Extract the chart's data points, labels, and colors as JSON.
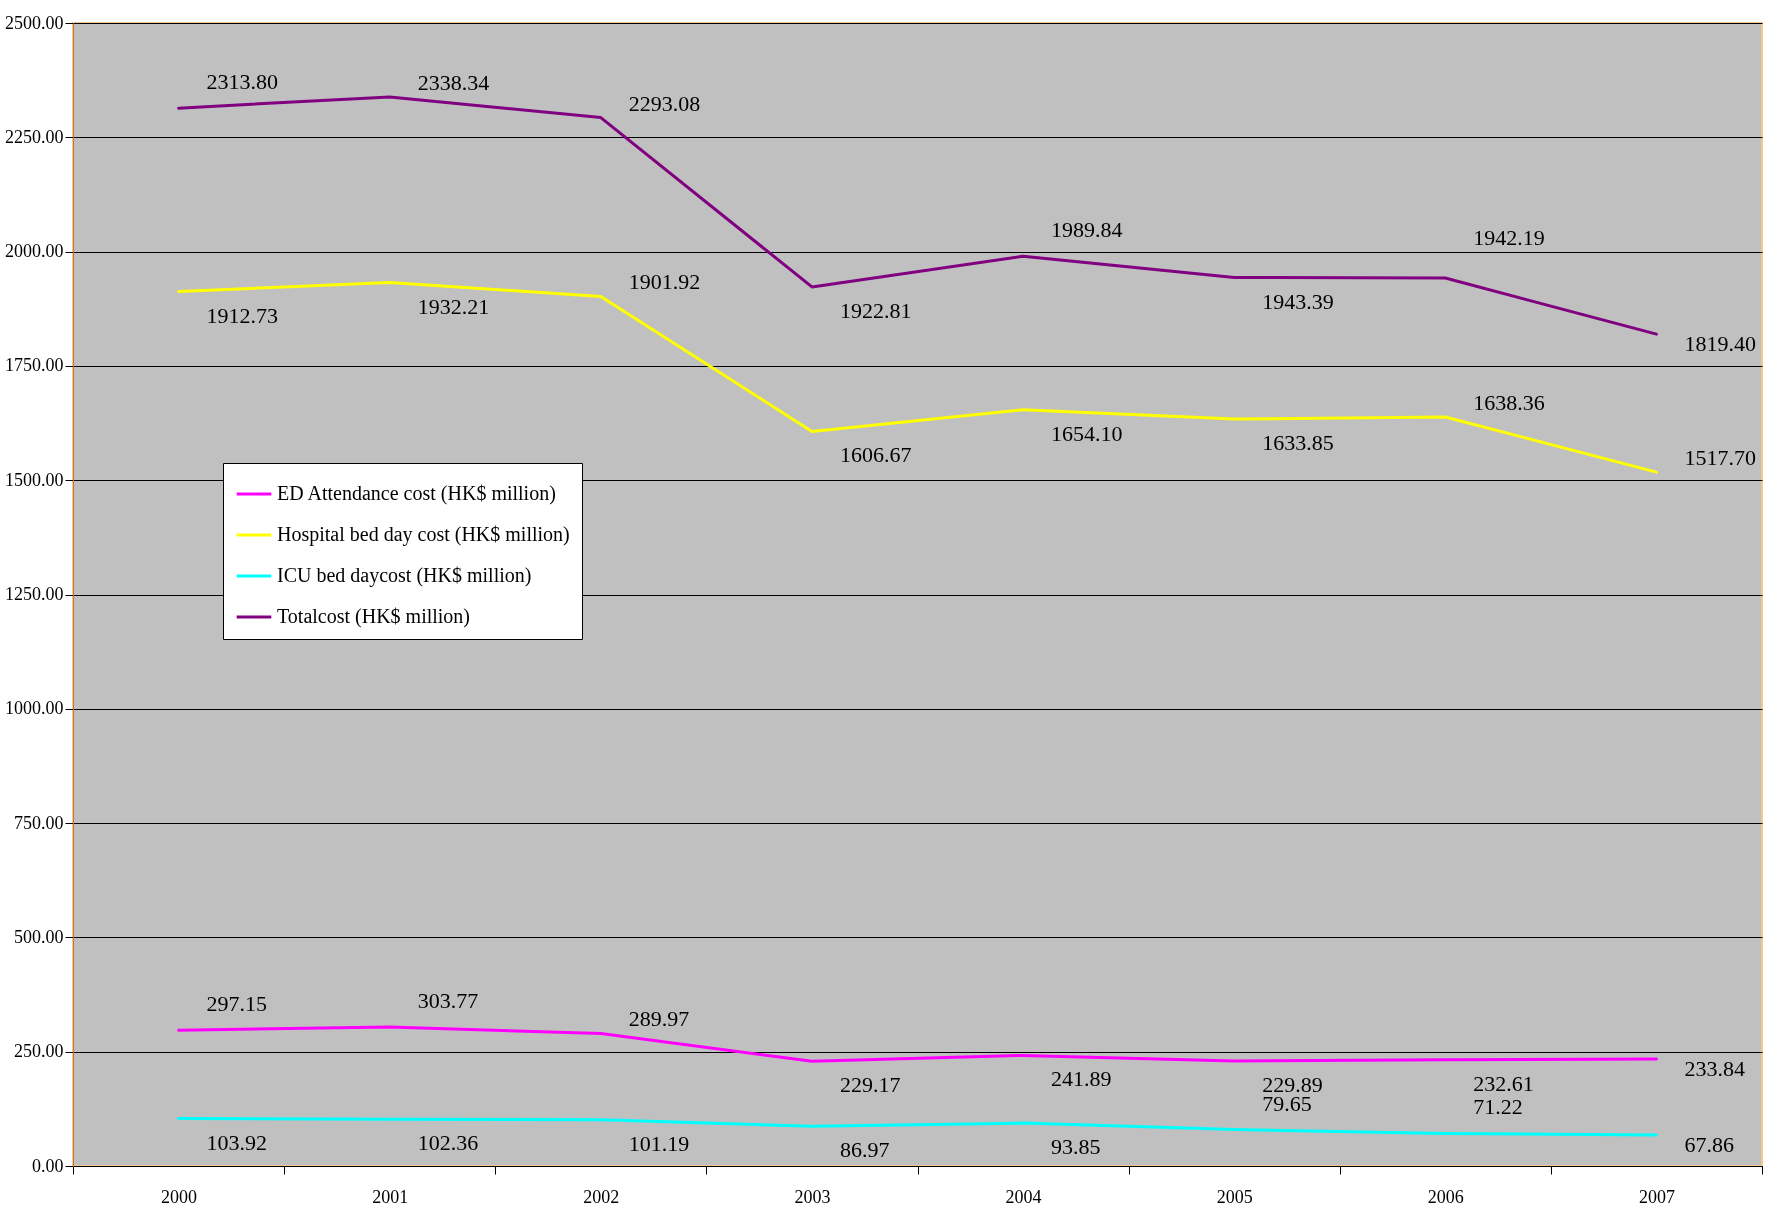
{
  "chart_data": {
    "type": "line",
    "categories": [
      "2000",
      "2001",
      "2002",
      "2003",
      "2004",
      "2005",
      "2006",
      "2007"
    ],
    "series": [
      {
        "name": "ED Attendance cost (HK$ million)",
        "color": "#ff00ff",
        "values": [
          297.15,
          303.77,
          289.97,
          229.17,
          241.89,
          229.89,
          232.61,
          233.84
        ],
        "value_labels": [
          "297.15",
          "303.77",
          "289.97",
          "229.17",
          "241.89",
          "229.89",
          "232.61",
          "233.84"
        ]
      },
      {
        "name": "Hospital bed day cost (HK$ million)",
        "color": "#ffff00",
        "values": [
          1912.73,
          1932.21,
          1901.92,
          1606.67,
          1654.1,
          1633.85,
          1638.36,
          1517.7
        ],
        "value_labels": [
          "1912.73",
          "1932.21",
          "1901.92",
          "1606.67",
          "1654.10",
          "1633.85",
          "1638.36",
          "1517.70"
        ]
      },
      {
        "name": "ICU bed daycost (HK$ million)",
        "color": "#00ffff",
        "values": [
          103.92,
          102.36,
          101.19,
          86.97,
          93.85,
          79.65,
          71.22,
          67.86
        ],
        "value_labels": [
          "103.92",
          "102.36",
          "101.19",
          "86.97",
          "93.85",
          "79.65",
          "71.22",
          "67.86"
        ]
      },
      {
        "name": "Totalcost (HK$ million)",
        "color": "#800080",
        "values": [
          2313.8,
          2338.34,
          2293.08,
          1922.81,
          1989.84,
          1943.39,
          1942.19,
          1819.4
        ],
        "value_labels": [
          "2313.80",
          "2338.34",
          "2293.08",
          "1922.81",
          "1989.84",
          "1943.39",
          "1942.19",
          "1819.40"
        ]
      }
    ],
    "ylim": [
      0,
      2500
    ],
    "yticks": [
      {
        "value": 0,
        "label": "0.00"
      },
      {
        "value": 250,
        "label": "250.00"
      },
      {
        "value": 500,
        "label": "500.00"
      },
      {
        "value": 750,
        "label": "750.00"
      },
      {
        "value": 1000,
        "label": "1000.00"
      },
      {
        "value": 1250,
        "label": "1250.00"
      },
      {
        "value": 1500,
        "label": "1500.00"
      },
      {
        "value": 1750,
        "label": "1750.00"
      },
      {
        "value": 2000,
        "label": "2000.00"
      },
      {
        "value": 2250,
        "label": "2250.00"
      },
      {
        "value": 2500,
        "label": "2500.00"
      }
    ],
    "grid": "y",
    "legend": "left"
  }
}
